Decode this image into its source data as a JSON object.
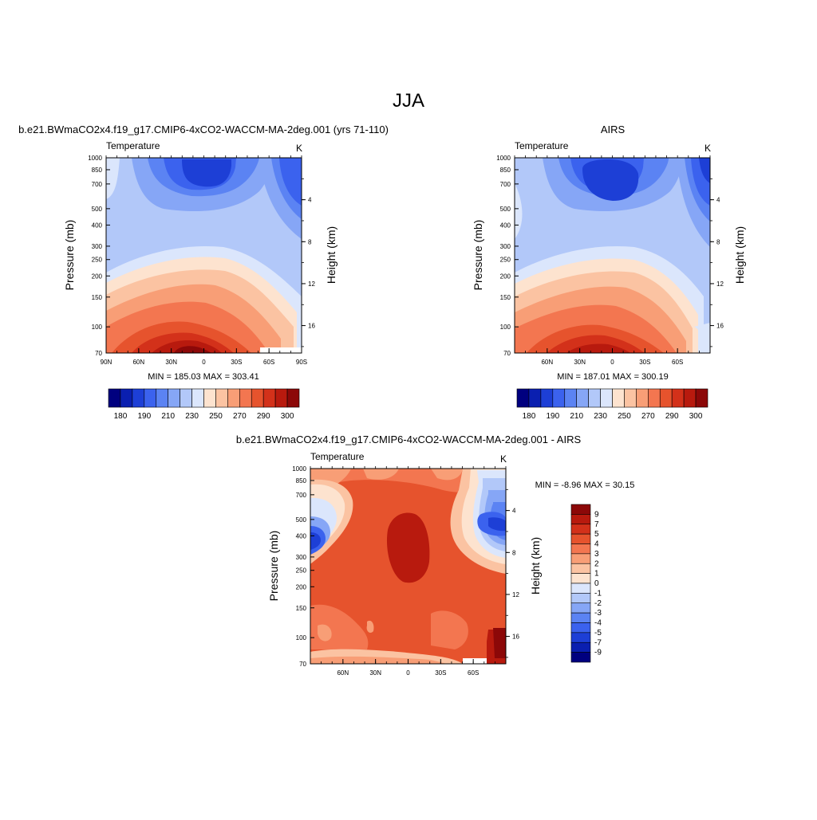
{
  "page_title": "JJA",
  "chart_data": [
    {
      "type": "heatmap",
      "id": "model",
      "title": "b.e21.BWmaCO2x4.f19_g17.CMIP6-4xCO2-WACCM-MA-2deg.001 (yrs 71-110)",
      "left_label": "Temperature",
      "right_label": "K",
      "ylabel": "Pressure (mb)",
      "y2label": "Height (km)",
      "xticks": [
        "90N",
        "60N",
        "30N",
        "0",
        "30S",
        "60S",
        "90S"
      ],
      "yticks": [
        "70",
        "100",
        "150",
        "200",
        "250",
        "300",
        "400",
        "500",
        "700",
        "850",
        "1000"
      ],
      "y2ticks": [
        "16",
        "12",
        "8",
        "4"
      ],
      "stats": "MIN = 185.03  MAX = 303.41",
      "colorbar": {
        "labels": [
          "180",
          "190",
          "210",
          "230",
          "250",
          "270",
          "290",
          "300"
        ],
        "colors": [
          "#00007f",
          "#0a1fb0",
          "#1d3fd6",
          "#3b62ee",
          "#5b83f3",
          "#86a6f6",
          "#b2c8f9",
          "#dbe6fc",
          "#fde3cf",
          "#fbc3a2",
          "#f89e76",
          "#f37650",
          "#e6532d",
          "#d3311a",
          "#b81a0e",
          "#8c0808"
        ]
      },
      "ylim": [
        1000,
        70
      ]
    },
    {
      "type": "heatmap",
      "id": "airs",
      "title": "AIRS",
      "left_label": "Temperature",
      "right_label": "K",
      "ylabel": "Pressure (mb)",
      "y2label": "Height (km)",
      "xticks": [
        "60N",
        "30N",
        "0",
        "30S",
        "60S"
      ],
      "yticks": [
        "70",
        "100",
        "150",
        "200",
        "250",
        "300",
        "400",
        "500",
        "700",
        "850",
        "1000"
      ],
      "y2ticks": [
        "16",
        "12",
        "8",
        "4"
      ],
      "stats": "MIN = 187.01  MAX = 300.19",
      "colorbar": {
        "labels": [
          "180",
          "190",
          "210",
          "230",
          "250",
          "270",
          "290",
          "300"
        ],
        "colors": [
          "#00007f",
          "#0a1fb0",
          "#1d3fd6",
          "#3b62ee",
          "#5b83f3",
          "#86a6f6",
          "#b2c8f9",
          "#dbe6fc",
          "#fde3cf",
          "#fbc3a2",
          "#f89e76",
          "#f37650",
          "#e6532d",
          "#d3311a",
          "#b81a0e",
          "#8c0808"
        ]
      },
      "ylim": [
        1000,
        70
      ]
    },
    {
      "type": "heatmap",
      "id": "diff",
      "title": "b.e21.BWmaCO2x4.f19_g17.CMIP6-4xCO2-WACCM-MA-2deg.001 - AIRS",
      "left_label": "Temperature",
      "right_label": "K",
      "ylabel": "Pressure (mb)",
      "y2label": "Height (km)",
      "xticks": [
        "60N",
        "30N",
        "0",
        "30S",
        "60S"
      ],
      "yticks": [
        "70",
        "100",
        "150",
        "200",
        "250",
        "300",
        "400",
        "500",
        "700",
        "850",
        "1000"
      ],
      "y2ticks": [
        "16",
        "12",
        "8",
        "4"
      ],
      "stats": "MIN =  -8.96  MAX =  30.15",
      "colorbar": {
        "labels": [
          "9",
          "7",
          "5",
          "4",
          "3",
          "2",
          "1",
          "0",
          "-1",
          "-2",
          "-3",
          "-4",
          "-5",
          "-7",
          "-9"
        ],
        "colors": [
          "#8c0808",
          "#b81a0e",
          "#d3311a",
          "#e6532d",
          "#f37650",
          "#f89e76",
          "#fbc3a2",
          "#fde3cf",
          "#dbe6fc",
          "#b2c8f9",
          "#86a6f6",
          "#5b83f3",
          "#3b62ee",
          "#1d3fd6",
          "#0a1fb0",
          "#00007f"
        ]
      },
      "ylim": [
        1000,
        70
      ]
    }
  ]
}
